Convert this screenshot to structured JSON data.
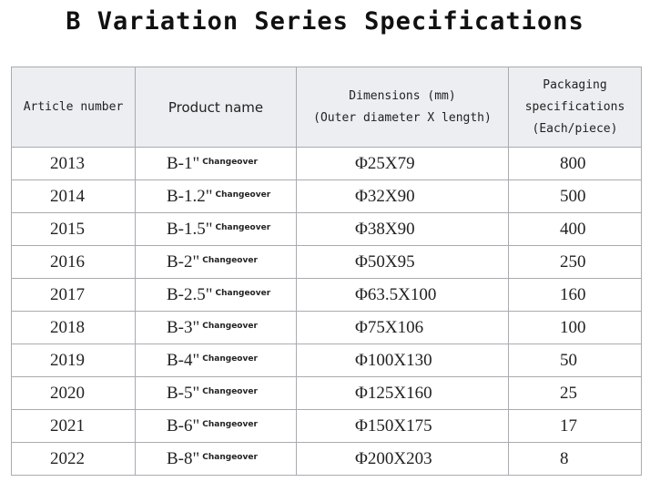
{
  "header": {
    "title": "B Variation Series Specifications"
  },
  "table": {
    "columns": [
      [
        "Article number"
      ],
      [
        "Product name"
      ],
      [
        "Dimensions (mm)",
        "(Outer diameter X length)"
      ],
      [
        "Packaging",
        "specifications",
        "(Each/piece)"
      ]
    ],
    "rows": [
      [
        2013,
        "B-1\"",
        "Changeover",
        "Φ25X79",
        800
      ],
      [
        2014,
        "B-1.2\"",
        "Changeover",
        "Φ32X90",
        500
      ],
      [
        2015,
        "B-1.5\"",
        "Changeover",
        "Φ38X90",
        400
      ],
      [
        2016,
        "B-2\"",
        "Changeover",
        "Φ50X95",
        250
      ],
      [
        2017,
        "B-2.5\"",
        "Changeover",
        "Φ63.5X100",
        160
      ],
      [
        2018,
        "B-3\"",
        "Changeover",
        "Φ75X106",
        100
      ],
      [
        2019,
        "B-4\"",
        "Changeover",
        "Φ100X130",
        50
      ],
      [
        2020,
        "B-5\"",
        "Changeover",
        "Φ125X160",
        25
      ],
      [
        2021,
        "B-6\"",
        "Changeover",
        "Φ150X175",
        17
      ],
      [
        2022,
        "B-8\"",
        "Changeover",
        "Φ200X203",
        8
      ]
    ]
  }
}
